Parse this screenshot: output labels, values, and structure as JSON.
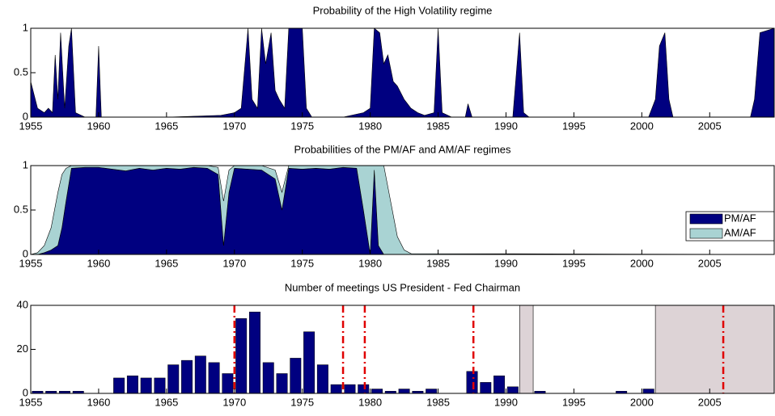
{
  "chart_data": [
    {
      "type": "area",
      "title": "Probability of the High Volatility regime",
      "xlim": [
        1955,
        2009.75
      ],
      "xticks": [
        1955,
        1960,
        1965,
        1970,
        1975,
        1980,
        1985,
        1990,
        1995,
        2000,
        2005
      ],
      "ylim": [
        0,
        1
      ],
      "yticks": [
        0,
        0.5,
        1
      ],
      "x": [
        1955,
        1955.5,
        1956,
        1956.3,
        1956.6,
        1956.8,
        1957,
        1957.2,
        1957.5,
        1957.8,
        1958,
        1958.3,
        1959,
        1959.8,
        1960,
        1960.2,
        1965,
        1969,
        1970,
        1970.5,
        1971,
        1971.3,
        1971.7,
        1972,
        1972.3,
        1972.7,
        1973,
        1973.3,
        1973.7,
        1974,
        1975,
        1975.3,
        1975.7,
        1978,
        1979.5,
        1980,
        1980.3,
        1980.7,
        1981,
        1981.3,
        1981.7,
        1982,
        1982.5,
        1983,
        1983.5,
        1984,
        1984.7,
        1985,
        1985.3,
        1986,
        1987,
        1987.2,
        1987.5,
        1990.5,
        1991,
        1991.3,
        1991.7,
        2000.5,
        2001,
        2001.3,
        2001.7,
        2002,
        2002.3,
        2008,
        2008.3,
        2008.7,
        2009.75
      ],
      "series": [
        {
          "color": "#000080",
          "values": [
            0.4,
            0.1,
            0.05,
            0.1,
            0.05,
            0.7,
            0.2,
            0.95,
            0.1,
            0.8,
            1,
            0.05,
            0,
            0,
            0.8,
            0,
            0,
            0.02,
            0.05,
            0.1,
            1,
            0.2,
            0.1,
            1,
            0.6,
            0.95,
            0.3,
            0.2,
            0.1,
            1,
            1,
            0.1,
            0,
            0,
            0.05,
            0.1,
            1,
            0.95,
            0.6,
            0.7,
            0.4,
            0.35,
            0.2,
            0.1,
            0.05,
            0.02,
            0.05,
            1,
            0.05,
            0,
            0,
            0.15,
            0,
            0,
            0.95,
            0.05,
            0,
            0,
            0.2,
            0.8,
            0.95,
            0.2,
            0,
            0,
            0.2,
            0.95,
            1
          ]
        }
      ]
    },
    {
      "type": "stacked_area",
      "title": "Probabilities of the PM/AF and AM/AF regimes",
      "xlim": [
        1955,
        2009.75
      ],
      "xticks": [
        1955,
        1960,
        1965,
        1970,
        1975,
        1980,
        1985,
        1990,
        1995,
        2000,
        2005
      ],
      "ylim": [
        0,
        1
      ],
      "yticks": [
        0,
        0.5,
        1
      ],
      "legend": "right",
      "x": [
        1955,
        1955.5,
        1956,
        1956.5,
        1957,
        1957.3,
        1957.6,
        1958,
        1959,
        1960,
        1961,
        1962,
        1963,
        1964,
        1965,
        1966,
        1967,
        1968,
        1968.8,
        1969.2,
        1969.6,
        1970,
        1971,
        1972,
        1973,
        1973.5,
        1974,
        1975,
        1976,
        1977,
        1978,
        1979,
        1979.5,
        1980,
        1980.3,
        1980.6,
        1981,
        1981.5,
        1982,
        1982.5,
        1983,
        2009.75
      ],
      "series": [
        {
          "name": "PM/AF",
          "color": "#000080",
          "values": [
            0,
            0,
            0.02,
            0.05,
            0.1,
            0.3,
            0.6,
            0.97,
            0.98,
            0.98,
            0.96,
            0.94,
            0.97,
            0.95,
            0.97,
            0.96,
            0.98,
            0.97,
            0.9,
            0.1,
            0.7,
            0.97,
            0.96,
            0.95,
            0.85,
            0.5,
            0.97,
            0.96,
            0.97,
            0.96,
            0.98,
            0.97,
            0.5,
            0,
            0.95,
            0.1,
            0,
            0,
            0,
            0,
            0,
            0
          ]
        },
        {
          "name": "AM/AF",
          "color": "#a9d3d3",
          "values": [
            0,
            0.02,
            0.08,
            0.25,
            0.6,
            0.6,
            0.37,
            0.03,
            0.02,
            0.02,
            0.04,
            0.06,
            0.03,
            0.05,
            0.03,
            0.04,
            0.02,
            0.03,
            0.08,
            0.5,
            0.25,
            0.03,
            0.04,
            0.05,
            0.1,
            0.2,
            0.03,
            0.04,
            0.03,
            0.04,
            0.02,
            0.03,
            0.5,
            1,
            0.05,
            0.9,
            1,
            0.6,
            0.2,
            0.05,
            0.01,
            0
          ]
        }
      ]
    },
    {
      "type": "bar",
      "title": "Number of meetings US President - Fed Chairman",
      "xlim": [
        1955,
        2009.75
      ],
      "xticks": [
        1955,
        1960,
        1965,
        1970,
        1975,
        1980,
        1985,
        1990,
        1995,
        2000,
        2005
      ],
      "ylim": [
        0,
        40
      ],
      "yticks": [
        0,
        20,
        40
      ],
      "color": "#000080",
      "x": [
        1955,
        1956,
        1957,
        1958,
        1959,
        1960,
        1961,
        1962,
        1963,
        1964,
        1965,
        1966,
        1967,
        1968,
        1969,
        1970,
        1971,
        1972,
        1973,
        1974,
        1975,
        1976,
        1977,
        1978,
        1979,
        1980,
        1981,
        1982,
        1983,
        1984,
        1985,
        1986,
        1987,
        1988,
        1989,
        1990,
        1991,
        1992,
        1993,
        1994,
        1995,
        1996,
        1997,
        1998,
        1999,
        2000,
        2001,
        2002,
        2003,
        2004,
        2005,
        2006,
        2007,
        2008
      ],
      "values": [
        1,
        1,
        1,
        1,
        0,
        0,
        7,
        8,
        7,
        7,
        13,
        15,
        17,
        14,
        9,
        34,
        37,
        14,
        9,
        16,
        28,
        13,
        4,
        4,
        4,
        2,
        1,
        2,
        1,
        2,
        0,
        0,
        10,
        5,
        8,
        3,
        0,
        1,
        0,
        0,
        0,
        0,
        0,
        1,
        0,
        2,
        0,
        0,
        0,
        0,
        0,
        0,
        0,
        0
      ],
      "vlines": [
        1970,
        1978,
        1979.6,
        1987.6,
        2006
      ],
      "vline_color": "#e00000",
      "shaded": [
        [
          1991,
          1992
        ],
        [
          2001,
          2009.75
        ]
      ],
      "shade_color": "#ddd3d6"
    }
  ]
}
